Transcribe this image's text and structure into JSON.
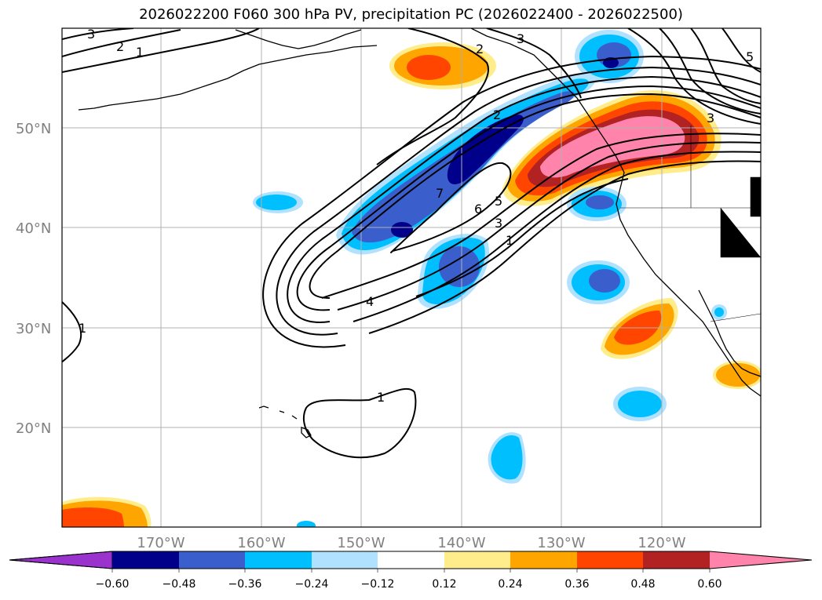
{
  "title": "2026022200 F060 300 hPa PV, precipitation PC (2026022400 - 2026022500)",
  "colors": {
    "neg_060": "#9a32cd",
    "neg_048": "#00008b",
    "neg_036": "#3a5fcd",
    "neg_024": "#00bfff",
    "neg_012": "#b0e2ff",
    "neutral": "#ffffff",
    "pos_012": "#ffec8b",
    "pos_024": "#ffa500",
    "pos_036": "#ff4500",
    "pos_048": "#b22222",
    "pos_060": "#ff83aa"
  },
  "map": {
    "lat_labels": [
      "50°N",
      "40°N",
      "30°N",
      "20°N"
    ],
    "lon_labels": [
      "170°W",
      "160°W",
      "150°W",
      "140°W",
      "130°W",
      "120°W"
    ],
    "contour_labels": [
      "3",
      "2",
      "1",
      "2",
      "3",
      "2",
      "7",
      "6",
      "5",
      "3",
      "1",
      "4",
      "1",
      "1",
      "3",
      "5"
    ]
  },
  "colorbar": {
    "tick_labels": [
      "−0.60",
      "−0.48",
      "−0.36",
      "−0.24",
      "−0.12",
      "0.12",
      "0.24",
      "0.36",
      "0.48",
      "0.60"
    ]
  }
}
